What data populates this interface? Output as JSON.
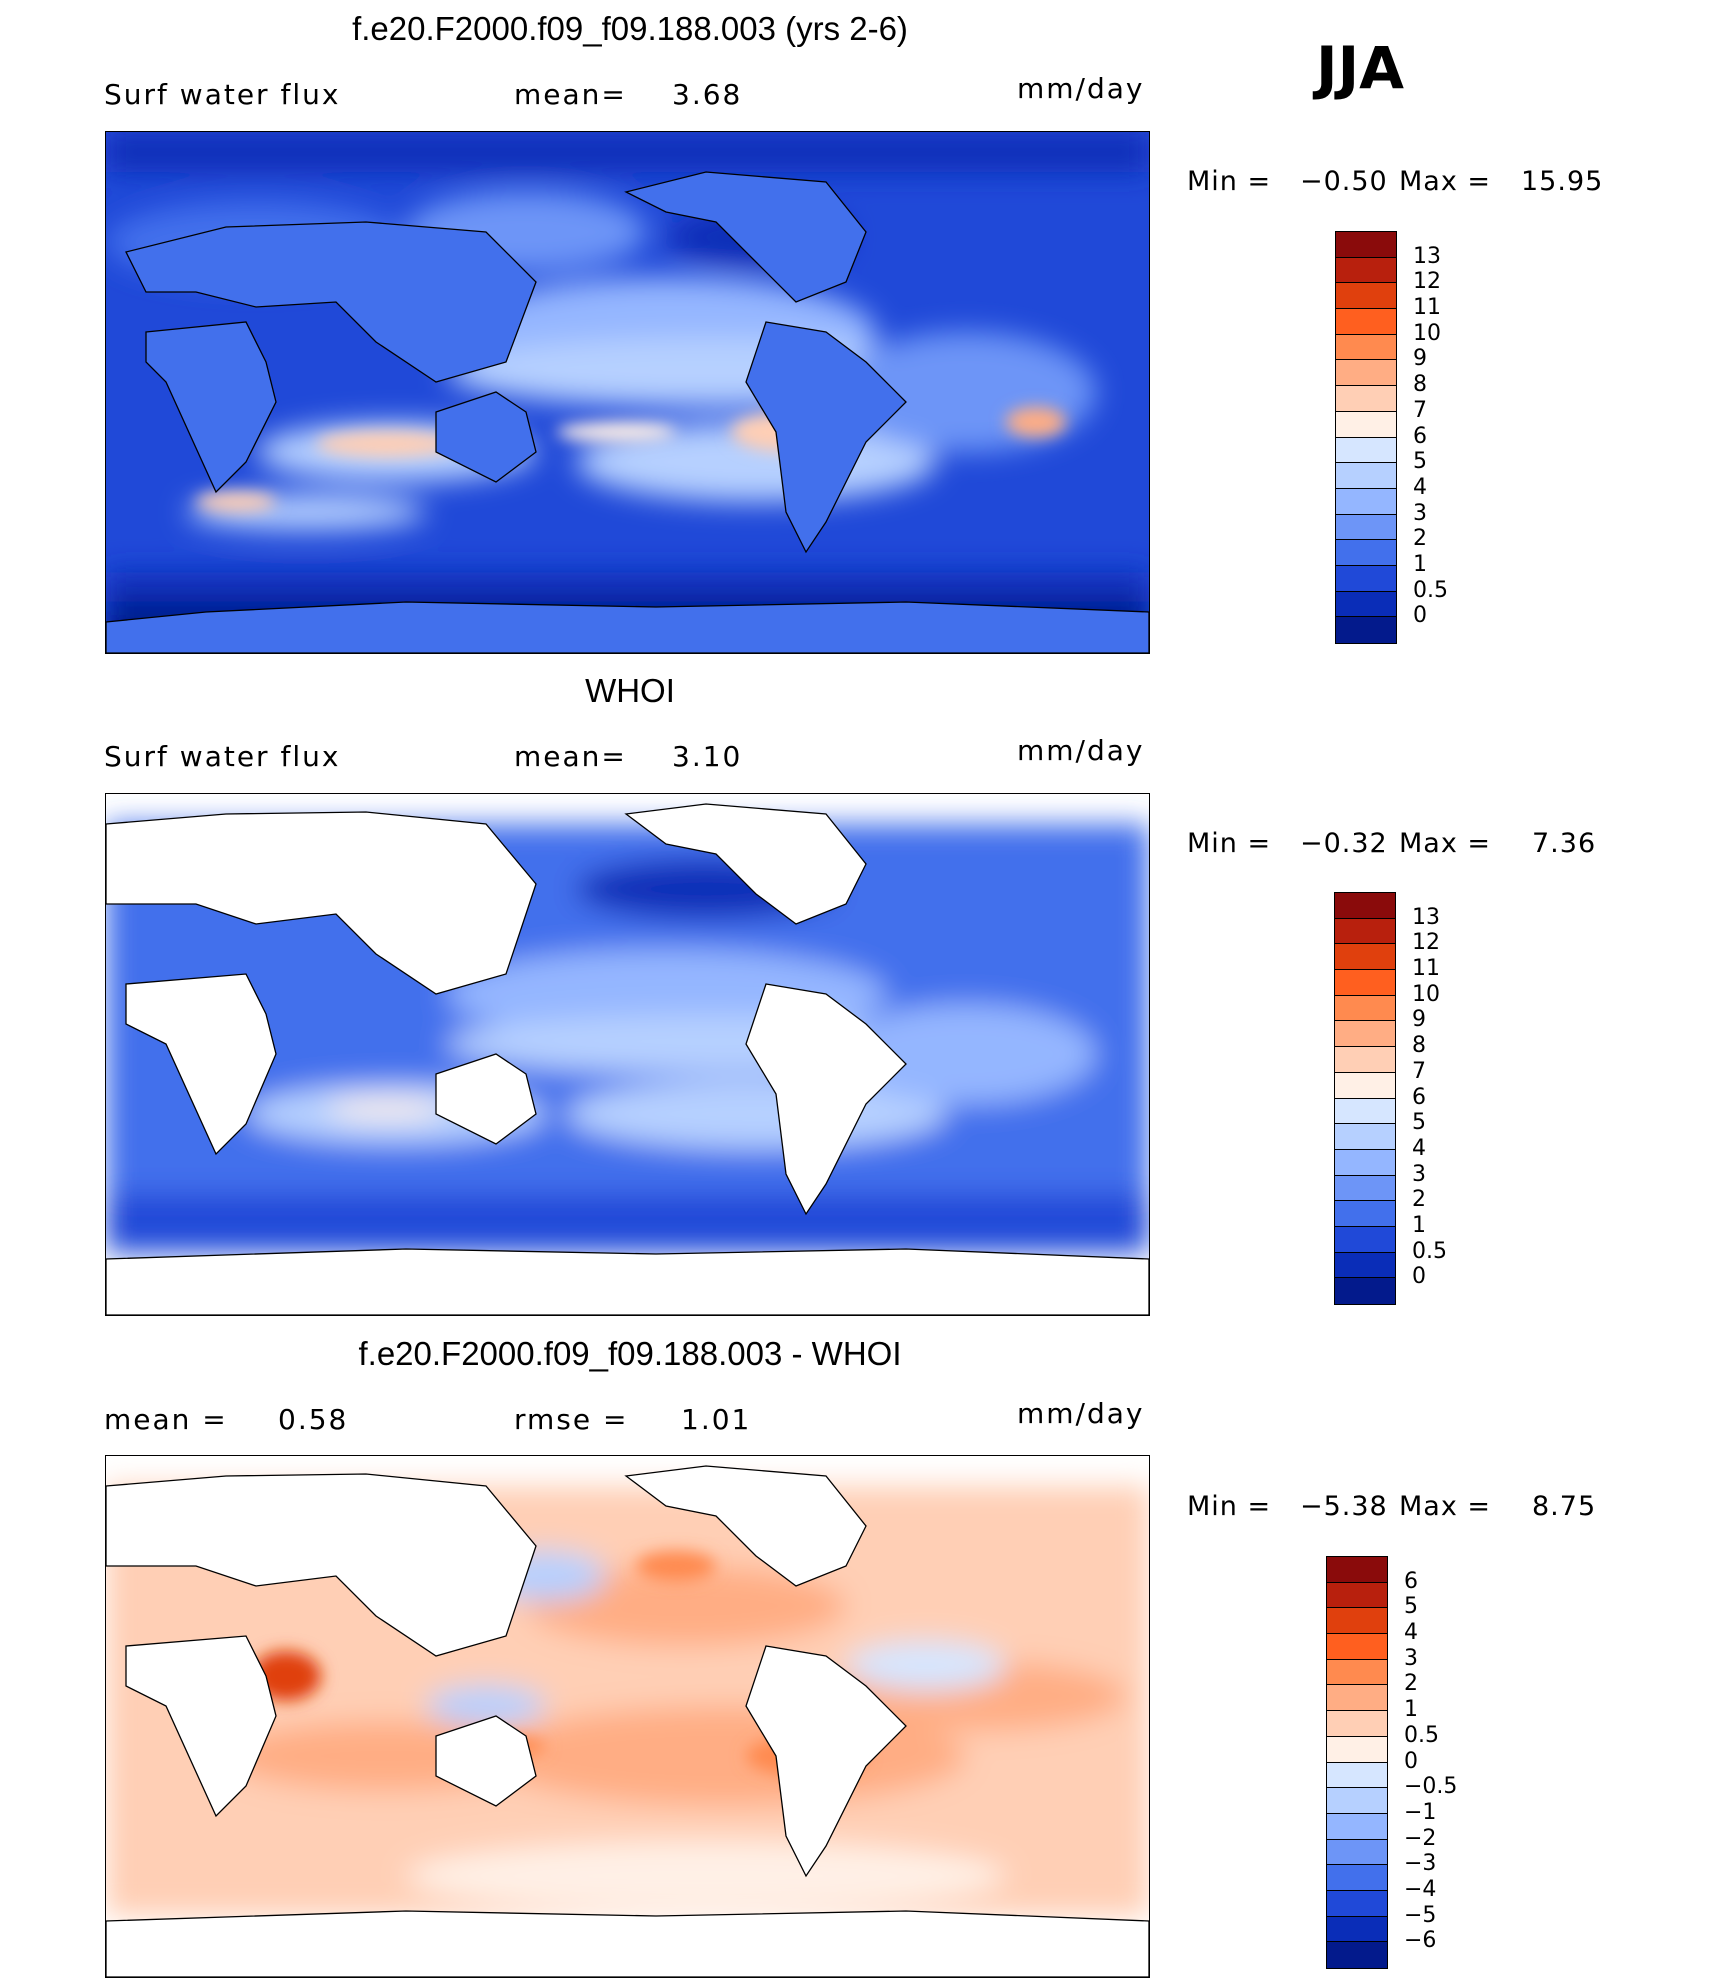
{
  "season": "JJA",
  "panels": [
    {
      "title": "f.e20.F2000.f09_f09.188.003 (yrs 2-6)",
      "left_label": "Surf  water  flux",
      "mid_label": "mean=",
      "mid_value": "3.68",
      "units": "mm/day",
      "min_label": "Min  =",
      "min_value": "−0.50",
      "max_label": "Max  =",
      "max_value": "15.95",
      "colorbar_labels": [
        "13",
        "12",
        "11",
        "10",
        "9",
        "8",
        "7",
        "6",
        "5",
        "4",
        "3",
        "2",
        "1",
        "0.5",
        "0"
      ],
      "colorbar_colors": [
        "#8a0b0b",
        "#b8200d",
        "#e0400d",
        "#ff5f1f",
        "#ff8a4f",
        "#ffad84",
        "#ffcfb5",
        "#fff0e6",
        "#d6e6ff",
        "#b6d0ff",
        "#94b6ff",
        "#6d95f7",
        "#4270ec",
        "#2049d8",
        "#0a2db8",
        "#031a8c"
      ],
      "ocean_only": false
    },
    {
      "title": "WHOI",
      "left_label": "Surf  water  flux",
      "mid_label": "mean=",
      "mid_value": "3.10",
      "units": "mm/day",
      "min_label": "Min  =",
      "min_value": "−0.32",
      "max_label": "Max  =",
      "max_value": "7.36",
      "colorbar_labels": [
        "13",
        "12",
        "11",
        "10",
        "9",
        "8",
        "7",
        "6",
        "5",
        "4",
        "3",
        "2",
        "1",
        "0.5",
        "0"
      ],
      "colorbar_colors": [
        "#8a0b0b",
        "#b8200d",
        "#e0400d",
        "#ff5f1f",
        "#ff8a4f",
        "#ffad84",
        "#ffcfb5",
        "#fff0e6",
        "#d6e6ff",
        "#b6d0ff",
        "#94b6ff",
        "#6d95f7",
        "#4270ec",
        "#2049d8",
        "#0a2db8",
        "#031a8c"
      ],
      "ocean_only": true
    },
    {
      "title": "f.e20.F2000.f09_f09.188.003 - WHOI",
      "left_label": "mean  =",
      "left_value": "0.58",
      "mid_label": "rmse  =",
      "mid_value": "1.01",
      "units": "mm/day",
      "min_label": "Min  =",
      "min_value": "−5.38",
      "max_label": "Max  =",
      "max_value": "8.75",
      "colorbar_labels": [
        "6",
        "5",
        "4",
        "3",
        "2",
        "1",
        "0.5",
        "0",
        "−0.5",
        "−1",
        "−2",
        "−3",
        "−4",
        "−5",
        "−6"
      ],
      "colorbar_colors": [
        "#8a0b0b",
        "#b8200d",
        "#e0400d",
        "#ff5f1f",
        "#ff8a4f",
        "#ffad84",
        "#ffcfb5",
        "#fff0e6",
        "#d6e6ff",
        "#b6d0ff",
        "#94b6ff",
        "#6d95f7",
        "#4270ec",
        "#2049d8",
        "#0a2db8",
        "#031a8c"
      ],
      "ocean_only": true
    }
  ]
}
